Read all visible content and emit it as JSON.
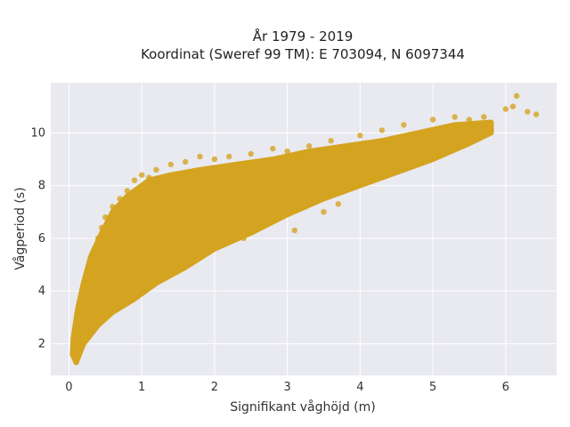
{
  "chart_data": {
    "type": "scatter",
    "title": "År 1979 - 2019",
    "subtitle": "Koordinat (Sweref 99 TM): E 703094, N 6097344",
    "xlabel": "Signifikant våghöjd (m)",
    "ylabel": "Vågperiod (s)",
    "xlim": [
      -0.25,
      6.7
    ],
    "ylim": [
      0.8,
      11.9
    ],
    "xticks": [
      0,
      1,
      2,
      3,
      4,
      5,
      6
    ],
    "yticks": [
      2,
      4,
      6,
      8,
      10
    ],
    "grid": true,
    "marker_color": "#D4A420",
    "plot_background": "#E9E9F0",
    "series": [
      {
        "points": [
          [
            0.05,
            1.6
          ],
          [
            0.08,
            2.0
          ],
          [
            0.1,
            1.3
          ],
          [
            0.12,
            2.4
          ],
          [
            0.15,
            3.0
          ],
          [
            0.18,
            3.5
          ],
          [
            0.2,
            4.2
          ],
          [
            0.25,
            4.6
          ],
          [
            0.3,
            5.2
          ],
          [
            0.35,
            5.6
          ],
          [
            0.4,
            6.0
          ],
          [
            0.45,
            6.4
          ],
          [
            0.5,
            6.8
          ],
          [
            0.6,
            7.2
          ],
          [
            0.7,
            7.5
          ],
          [
            0.8,
            7.8
          ],
          [
            0.9,
            8.2
          ],
          [
            1.0,
            8.4
          ],
          [
            1.1,
            8.3
          ],
          [
            1.2,
            8.6
          ],
          [
            1.4,
            8.8
          ],
          [
            1.6,
            8.9
          ],
          [
            1.8,
            9.1
          ],
          [
            2.0,
            9.0
          ],
          [
            2.2,
            9.1
          ],
          [
            2.5,
            9.2
          ],
          [
            2.8,
            9.4
          ],
          [
            3.0,
            9.3
          ],
          [
            3.3,
            9.5
          ],
          [
            3.6,
            9.7
          ],
          [
            4.0,
            9.9
          ],
          [
            4.3,
            10.1
          ],
          [
            4.6,
            10.3
          ],
          [
            5.0,
            10.5
          ],
          [
            5.3,
            10.6
          ],
          [
            5.5,
            10.5
          ],
          [
            5.7,
            10.6
          ],
          [
            6.0,
            10.9
          ],
          [
            6.1,
            11.0
          ],
          [
            6.15,
            11.4
          ],
          [
            6.3,
            10.8
          ],
          [
            6.42,
            10.7
          ],
          [
            0.1,
            1.9
          ],
          [
            0.2,
            2.2
          ],
          [
            0.3,
            2.6
          ],
          [
            0.4,
            2.9
          ],
          [
            0.5,
            3.2
          ],
          [
            0.7,
            3.7
          ],
          [
            0.9,
            4.0
          ],
          [
            1.0,
            4.3
          ],
          [
            1.2,
            4.6
          ],
          [
            1.5,
            5.2
          ],
          [
            1.8,
            5.6
          ],
          [
            2.0,
            5.9
          ],
          [
            2.3,
            6.3
          ],
          [
            2.6,
            6.8
          ],
          [
            3.0,
            7.3
          ],
          [
            3.3,
            7.6
          ],
          [
            3.6,
            7.9
          ],
          [
            4.0,
            8.3
          ],
          [
            4.3,
            8.6
          ],
          [
            4.6,
            8.9
          ],
          [
            5.0,
            9.2
          ],
          [
            5.3,
            9.4
          ],
          [
            5.6,
            9.8
          ],
          [
            5.8,
            10.1
          ],
          [
            1.0,
            6.5
          ],
          [
            1.5,
            6.8
          ],
          [
            2.0,
            7.2
          ],
          [
            2.5,
            7.6
          ],
          [
            3.0,
            8.0
          ],
          [
            3.5,
            8.5
          ],
          [
            4.0,
            8.9
          ],
          [
            4.5,
            9.3
          ],
          [
            5.0,
            9.8
          ],
          [
            0.6,
            5.0
          ],
          [
            0.8,
            5.5
          ],
          [
            1.2,
            6.0
          ],
          [
            1.6,
            6.4
          ],
          [
            2.2,
            6.6
          ],
          [
            2.8,
            7.0
          ],
          [
            3.2,
            7.4
          ],
          [
            3.8,
            8.0
          ],
          [
            4.2,
            8.4
          ],
          [
            4.8,
            9.0
          ],
          [
            5.2,
            9.6
          ],
          [
            2.4,
            6.0
          ],
          [
            3.1,
            6.3
          ],
          [
            3.5,
            7.0
          ],
          [
            3.7,
            7.3
          ]
        ]
      }
    ]
  }
}
